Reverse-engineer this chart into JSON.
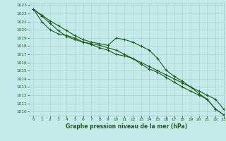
{
  "xlabel": "Graphe pression niveau de la mer (hPa)",
  "ylim": [
    1009.5,
    1023.3
  ],
  "xlim": [
    -0.5,
    23
  ],
  "yticks": [
    1010,
    1011,
    1012,
    1013,
    1014,
    1015,
    1016,
    1017,
    1018,
    1019,
    1020,
    1021,
    1022,
    1023
  ],
  "xticks": [
    0,
    1,
    2,
    3,
    4,
    5,
    6,
    7,
    8,
    9,
    10,
    11,
    12,
    13,
    14,
    15,
    16,
    17,
    18,
    19,
    20,
    21,
    22,
    23
  ],
  "bg_color": "#c5eaea",
  "grid_color": "#a0cccc",
  "line_color": "#1a5c1a",
  "line1": [
    1022.5,
    1021.8,
    1021.1,
    1020.5,
    1019.9,
    1019.3,
    1018.8,
    1018.5,
    1018.3,
    1018.1,
    1019.0,
    1018.8,
    1018.5,
    1018.0,
    1017.5,
    1016.5,
    1015.1,
    1014.3,
    1013.7,
    1013.0,
    1012.2,
    1011.5,
    1010.3,
    1009.6
  ],
  "line2": [
    1022.5,
    1021.7,
    1020.8,
    1019.9,
    1019.2,
    1018.8,
    1018.5,
    1018.3,
    1018.1,
    1017.8,
    1017.5,
    1017.0,
    1016.5,
    1015.8,
    1015.2,
    1014.8,
    1014.2,
    1013.6,
    1013.0,
    1012.5,
    1012.0,
    1011.5,
    1010.3,
    1009.6
  ],
  "line3": [
    1022.5,
    1021.0,
    1020.0,
    1019.5,
    1019.3,
    1019.0,
    1018.5,
    1018.2,
    1017.8,
    1017.5,
    1017.0,
    1016.8,
    1016.5,
    1016.0,
    1015.5,
    1015.0,
    1014.5,
    1014.0,
    1013.5,
    1013.0,
    1012.5,
    1012.0,
    1011.5,
    1010.3
  ]
}
